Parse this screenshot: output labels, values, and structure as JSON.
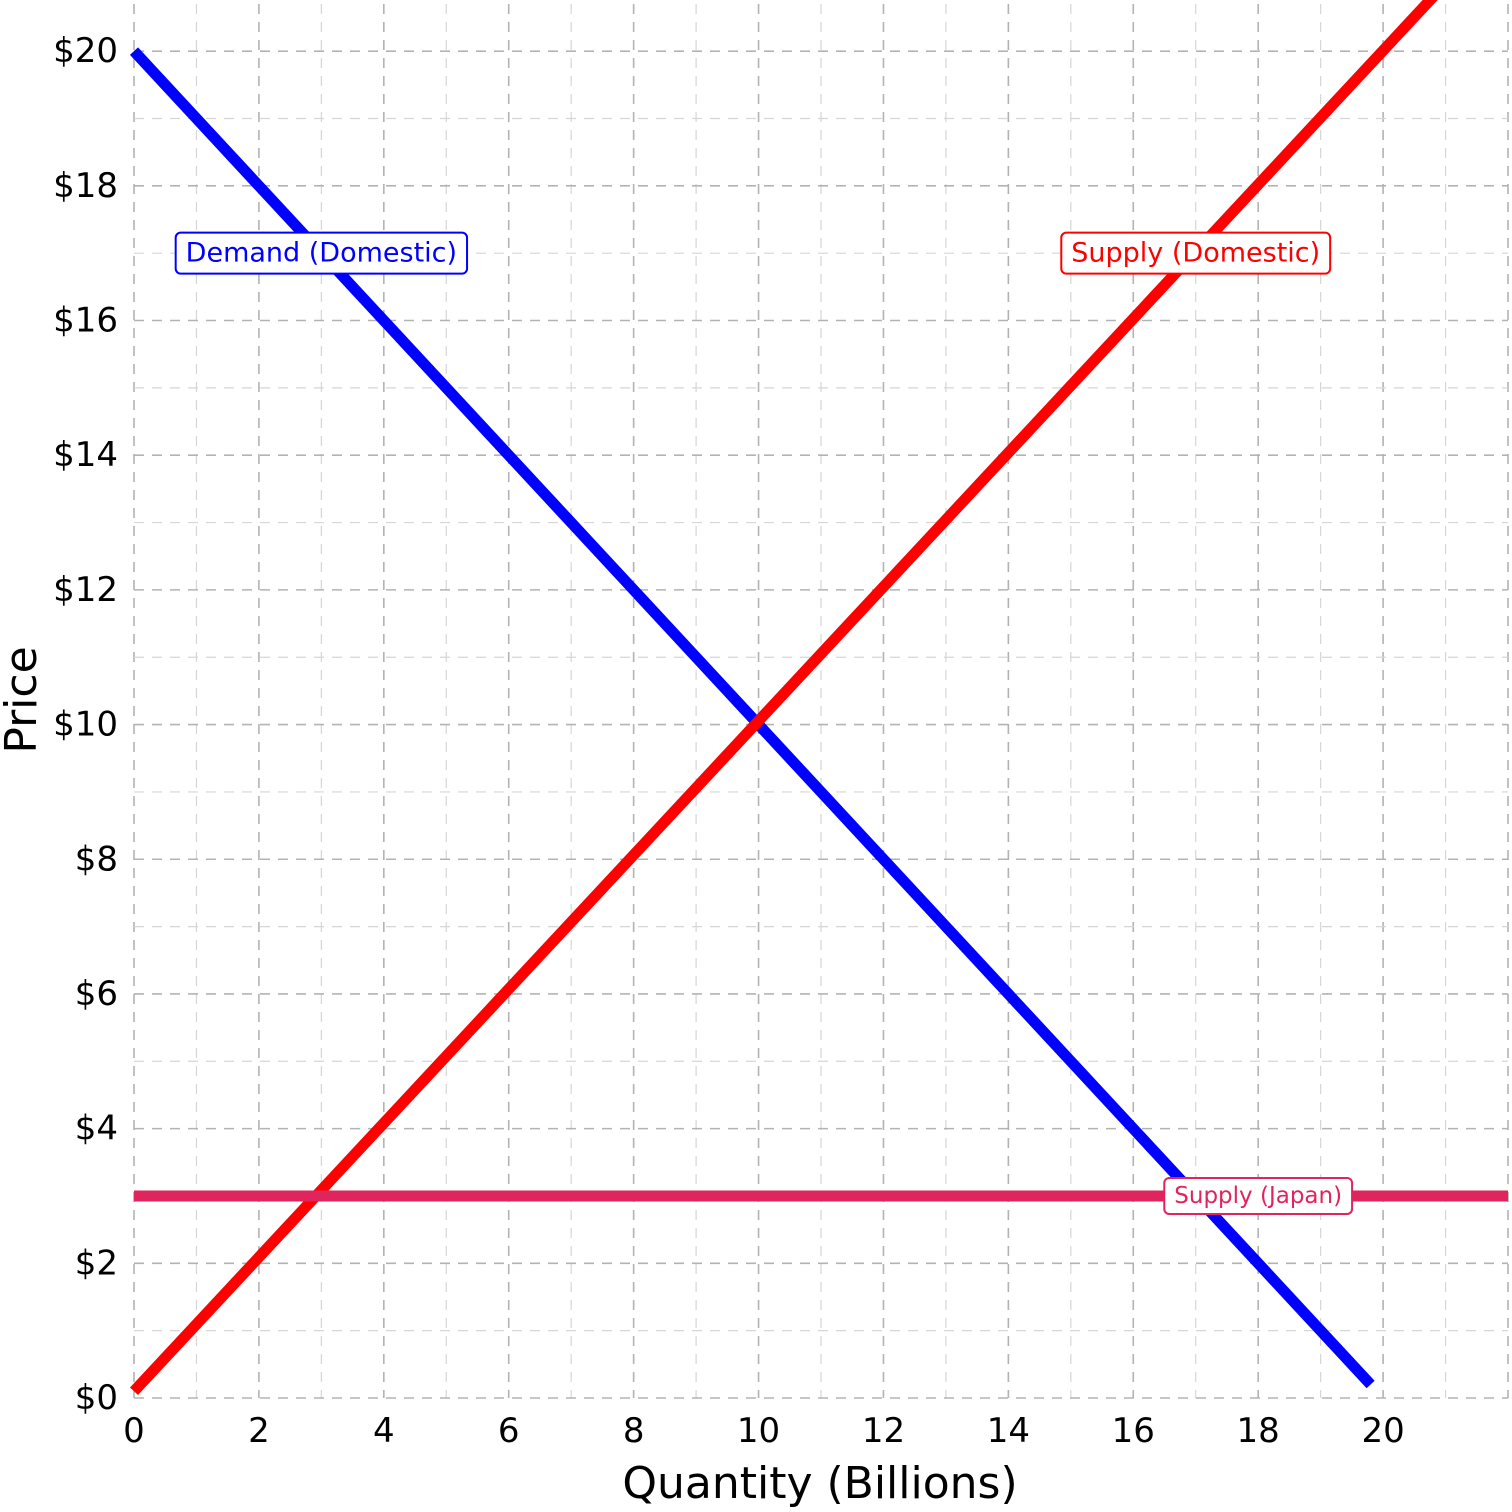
{
  "chart_data": {
    "type": "line",
    "title": "",
    "xlabel": "Quantity (Billions)",
    "ylabel": "Price",
    "xlim": [
      0,
      22
    ],
    "ylim": [
      0,
      20.7
    ],
    "x_ticks": [
      0,
      2,
      4,
      6,
      8,
      10,
      12,
      14,
      16,
      18,
      20
    ],
    "x_tick_labels": [
      "0",
      "2",
      "4",
      "6",
      "8",
      "10",
      "12",
      "14",
      "16",
      "18",
      "20"
    ],
    "y_ticks": [
      0,
      2,
      4,
      6,
      8,
      10,
      12,
      14,
      16,
      18,
      20
    ],
    "y_tick_labels": [
      "$0",
      "$2",
      "$4",
      "$6",
      "$8",
      "$10",
      "$12",
      "$14",
      "$16",
      "$18",
      "$20"
    ],
    "grid": "dashed",
    "series": [
      {
        "name": "Demand (Domestic)",
        "color": "#0000ff",
        "points": [
          [
            0,
            20
          ],
          [
            19.8,
            0.2
          ]
        ],
        "label_at": [
          3,
          17
        ]
      },
      {
        "name": "Supply (Domestic)",
        "color": "#ff0000",
        "points": [
          [
            0,
            0.1
          ],
          [
            22,
            22
          ]
        ],
        "label_at": [
          17,
          17
        ]
      },
      {
        "name": "Supply (Japan)",
        "color": "#e0245e",
        "points": [
          [
            0,
            3
          ],
          [
            22,
            3
          ]
        ],
        "label_at": [
          18,
          3
        ]
      }
    ]
  }
}
